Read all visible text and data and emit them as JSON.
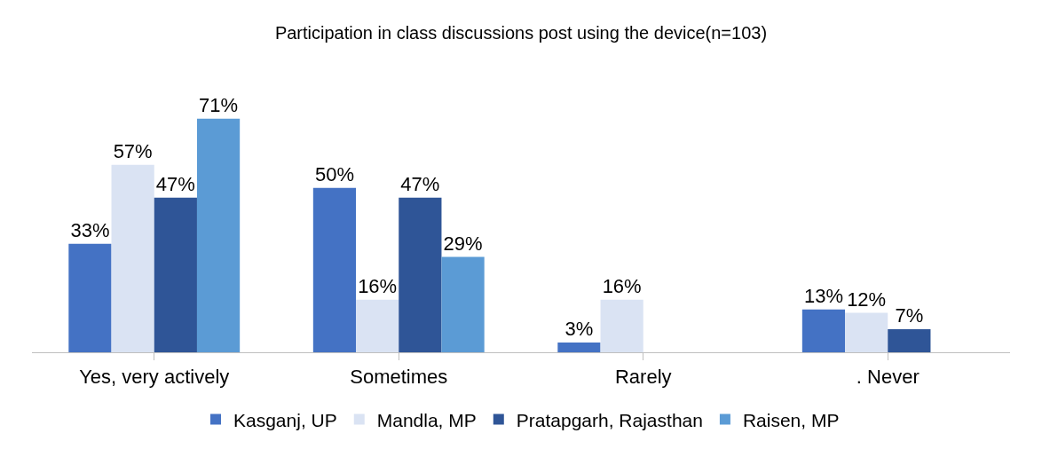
{
  "chart_data": {
    "type": "bar",
    "title": "Participation in class discussions post using the device(n=103)",
    "categories": [
      "Yes, very actively",
      "Sometimes",
      "Rarely",
      ". Never"
    ],
    "series": [
      {
        "name": "Kasganj, UP",
        "color": "#4472c4",
        "values": [
          33,
          50,
          3,
          13
        ],
        "value_labels": [
          "33%",
          "50%",
          "3%",
          "13%"
        ]
      },
      {
        "name": "Mandla, MP",
        "color": "#dae3f3",
        "values": [
          57,
          16,
          16,
          12
        ],
        "value_labels": [
          "57%",
          "16%",
          "16%",
          "12%"
        ]
      },
      {
        "name": "Pratapgarh, Rajasthan",
        "color": "#2f5597",
        "values": [
          47,
          47,
          null,
          7
        ],
        "value_labels": [
          "47%",
          "47%",
          null,
          "7%"
        ]
      },
      {
        "name": "Raisen, MP",
        "color": "#5b9bd5",
        "values": [
          71,
          29,
          null,
          null
        ],
        "value_labels": [
          "71%",
          "29%",
          null,
          null
        ]
      }
    ],
    "legend": "bottom"
  }
}
